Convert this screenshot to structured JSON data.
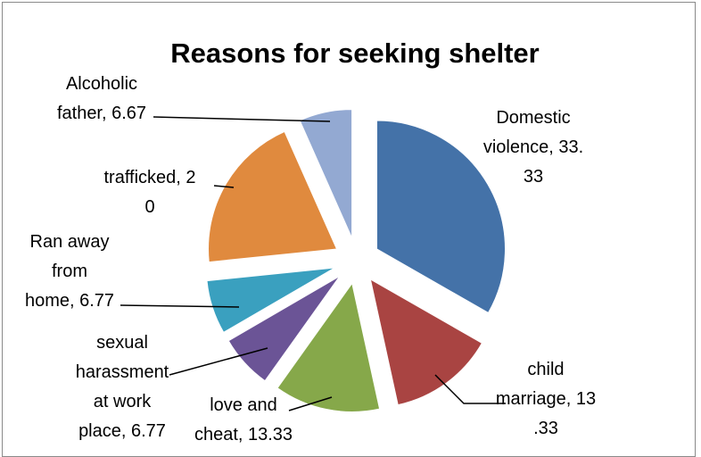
{
  "chart_data": {
    "type": "pie",
    "title": "Reasons for seeking shelter",
    "slices": [
      {
        "name": "Domestic violence",
        "value": 33.33,
        "color": "#4472a8",
        "label_lines": [
          "Domestic",
          "violence, 33.",
          "33"
        ]
      },
      {
        "name": "child marriage",
        "value": 13.33,
        "color": "#a94442",
        "label_lines": [
          "child",
          "marriage, 13",
          ".33"
        ]
      },
      {
        "name": "love and cheat",
        "value": 13.33,
        "color": "#86a84a",
        "label_lines": [
          "love and",
          "cheat, 13.33"
        ]
      },
      {
        "name": "sexual harassment at work place",
        "value": 6.77,
        "color": "#6b5496",
        "label_lines": [
          "sexual",
          "harassment",
          "at work",
          "place, 6.77"
        ]
      },
      {
        "name": "Ran away from home",
        "value": 6.77,
        "color": "#3aa0bf",
        "label_lines": [
          "Ran away",
          "from",
          "home, 6.77"
        ]
      },
      {
        "name": "trafficked",
        "value": 20,
        "color": "#e08a3e",
        "label_lines": [
          "trafficked, 2",
          "0"
        ]
      },
      {
        "name": "Alcoholic father",
        "value": 6.67,
        "color": "#93a9d2",
        "label_lines": [
          "Alcoholic",
          "father, 6.67"
        ]
      }
    ],
    "legend": "none",
    "data_labels": "outside with leader lines"
  }
}
